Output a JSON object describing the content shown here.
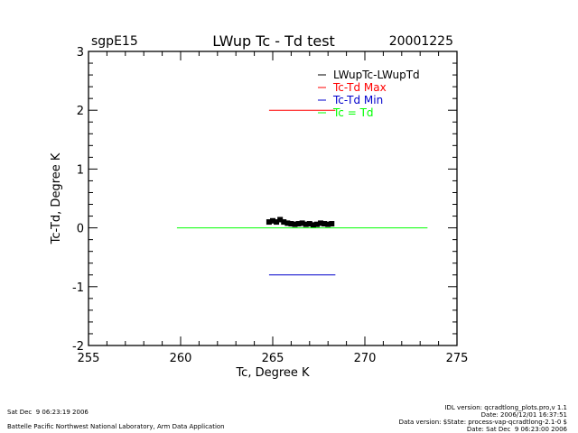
{
  "header": {
    "site": "sgpE15",
    "title": "LWup Tc - Td test",
    "date": "20001225"
  },
  "chart_data": {
    "type": "line",
    "title": "LWup Tc - Td test",
    "xlabel": "Tc, Degree K",
    "ylabel": "Tc-Td, Degree K",
    "xlim": [
      255,
      275
    ],
    "ylim": [
      -2,
      3
    ],
    "xticks": [
      255,
      260,
      265,
      270,
      275
    ],
    "yticks": [
      -2,
      -1,
      0,
      1,
      2,
      3
    ],
    "grid": false,
    "legend_position": "top-right",
    "series": [
      {
        "name": "LWupTc-LWupTd",
        "color": "#000000",
        "marker": "square",
        "x": [
          264.8,
          265.0,
          265.2,
          265.4,
          265.6,
          265.8,
          266.0,
          266.2,
          266.4,
          266.6,
          266.8,
          267.0,
          267.2,
          267.4,
          267.6,
          267.8,
          268.0,
          268.2
        ],
        "y": [
          0.1,
          0.12,
          0.1,
          0.14,
          0.1,
          0.08,
          0.07,
          0.06,
          0.07,
          0.08,
          0.06,
          0.07,
          0.05,
          0.06,
          0.08,
          0.07,
          0.06,
          0.07
        ]
      },
      {
        "name": "Tc-Td Max",
        "color": "#ff0000",
        "x": [
          264.8,
          268.4
        ],
        "y": [
          2.0,
          2.0
        ]
      },
      {
        "name": "Tc-Td Min",
        "color": "#0000cc",
        "x": [
          264.8,
          268.4
        ],
        "y": [
          -0.8,
          -0.8
        ]
      },
      {
        "name": "Tc = Td",
        "color": "#00ff00",
        "x": [
          259.8,
          273.4
        ],
        "y": [
          0.0,
          0.0
        ]
      }
    ]
  },
  "footer": {
    "left_line1": "Sat Dec  9 06:23:19 2006",
    "left_line2": "Battelle Pacific Northwest National Laboratory, Arm Data Application",
    "right_line1": "IDL version: qcradtlong_plots.pro,v 1.1",
    "right_line2": "Date: 2006/12/01 16:37:51",
    "right_line3": "Data version: $State: process-vap-qcradtlong-2.1-0 $",
    "right_line4": "Date: Sat Dec  9 06:23:00 2006"
  }
}
